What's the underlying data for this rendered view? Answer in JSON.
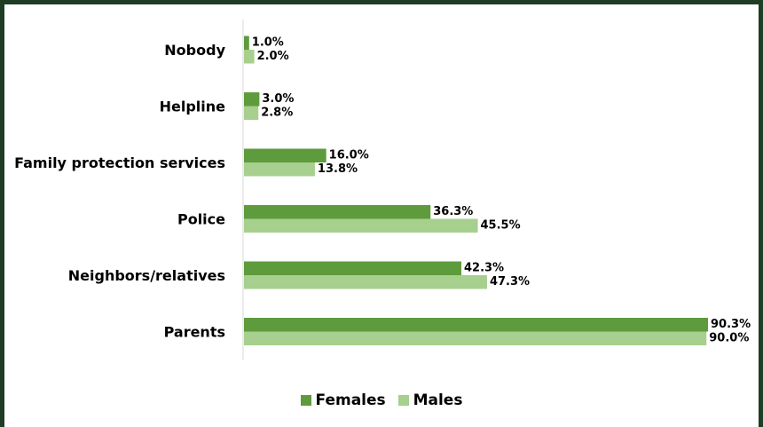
{
  "chart_data": {
    "type": "bar",
    "orientation": "horizontal",
    "categories": [
      "Nobody",
      "Helpline",
      "Family protection services",
      "Police",
      "Neighbors/relatives",
      "Parents"
    ],
    "series": [
      {
        "name": "Females",
        "color": "#5e9b3c",
        "values": [
          1.0,
          3.0,
          16.0,
          36.3,
          42.3,
          90.3
        ],
        "labels": [
          "1.0%",
          "3.0%",
          "16.0%",
          "36.3%",
          "42.3%",
          "90.3%"
        ]
      },
      {
        "name": "Males",
        "color": "#a7cf8e",
        "values": [
          2.0,
          2.8,
          13.8,
          45.5,
          47.3,
          90.0
        ],
        "labels": [
          "2.0%",
          "2.8%",
          "13.8%",
          "45.5%",
          "47.3%",
          "90.0%"
        ]
      }
    ],
    "xlim": [
      0,
      90.3
    ],
    "grid": false,
    "legend_position": "bottom"
  }
}
